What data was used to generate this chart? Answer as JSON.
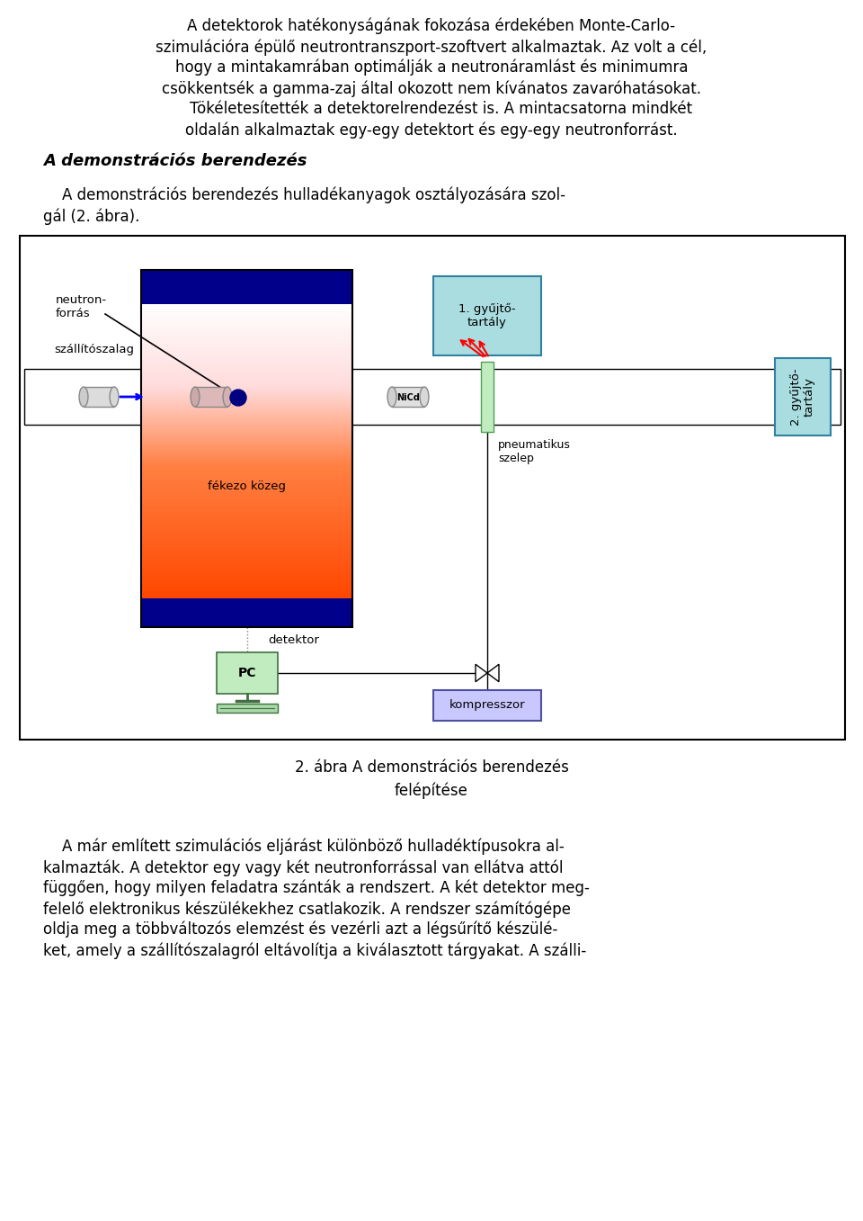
{
  "text_top_lines": [
    "A detektorok hatékonyságának fokozása érdekében Monte-Carlo-",
    "szimulációra épülő neutrontranszport-szoftvert alkalmaztak. Az volt a cél,",
    "hogy a mintakamrában optimálják a neutronáramlást és minimumra",
    "csökkentsék a gamma-zaj által okozott nem kívánatos zavaróhatásokat.",
    "    Tökéletesítették a detektorelrendezést is. A mintacsatorna mindkét",
    "oldalán alkalmaztak egy-egy detektort és egy-egy neutronforrást."
  ],
  "heading": "A demonstrációs berendezés",
  "text_mid_lines": [
    "    A demonstrációs berendezés hulladékanyagok osztályozására szol-",
    "gál (2. ábra)."
  ],
  "caption_line1": "2. ábra A demonstrációs berendezés",
  "caption_line2": "felépítése",
  "text_bottom_lines": [
    "    A már említett szimulációs eljárást különböző hulladéktípusokra al-",
    "kalmazták. A detektor egy vagy két neutronforrással van ellátva attól",
    "függően, hogy milyen feladatra szánták a rendszert. A két detektor meg-",
    "felelő elektronikus készülékekhez csatlakozik. A rendszer számítógépe",
    "oldja meg a többváltozós elemzést és vezérli azt a légsűrítő készülé-",
    "ket, amely a szállítószalagról eltávolítja a kiválasztott tárgyakat. A szálli-"
  ],
  "dark_blue": "#00008B",
  "gyujto_color": "#AADDE0",
  "pc_green": "#C0ECC0",
  "kompresszor_color": "#C8C8FF",
  "pneumatic_green": "#C0ECC0"
}
